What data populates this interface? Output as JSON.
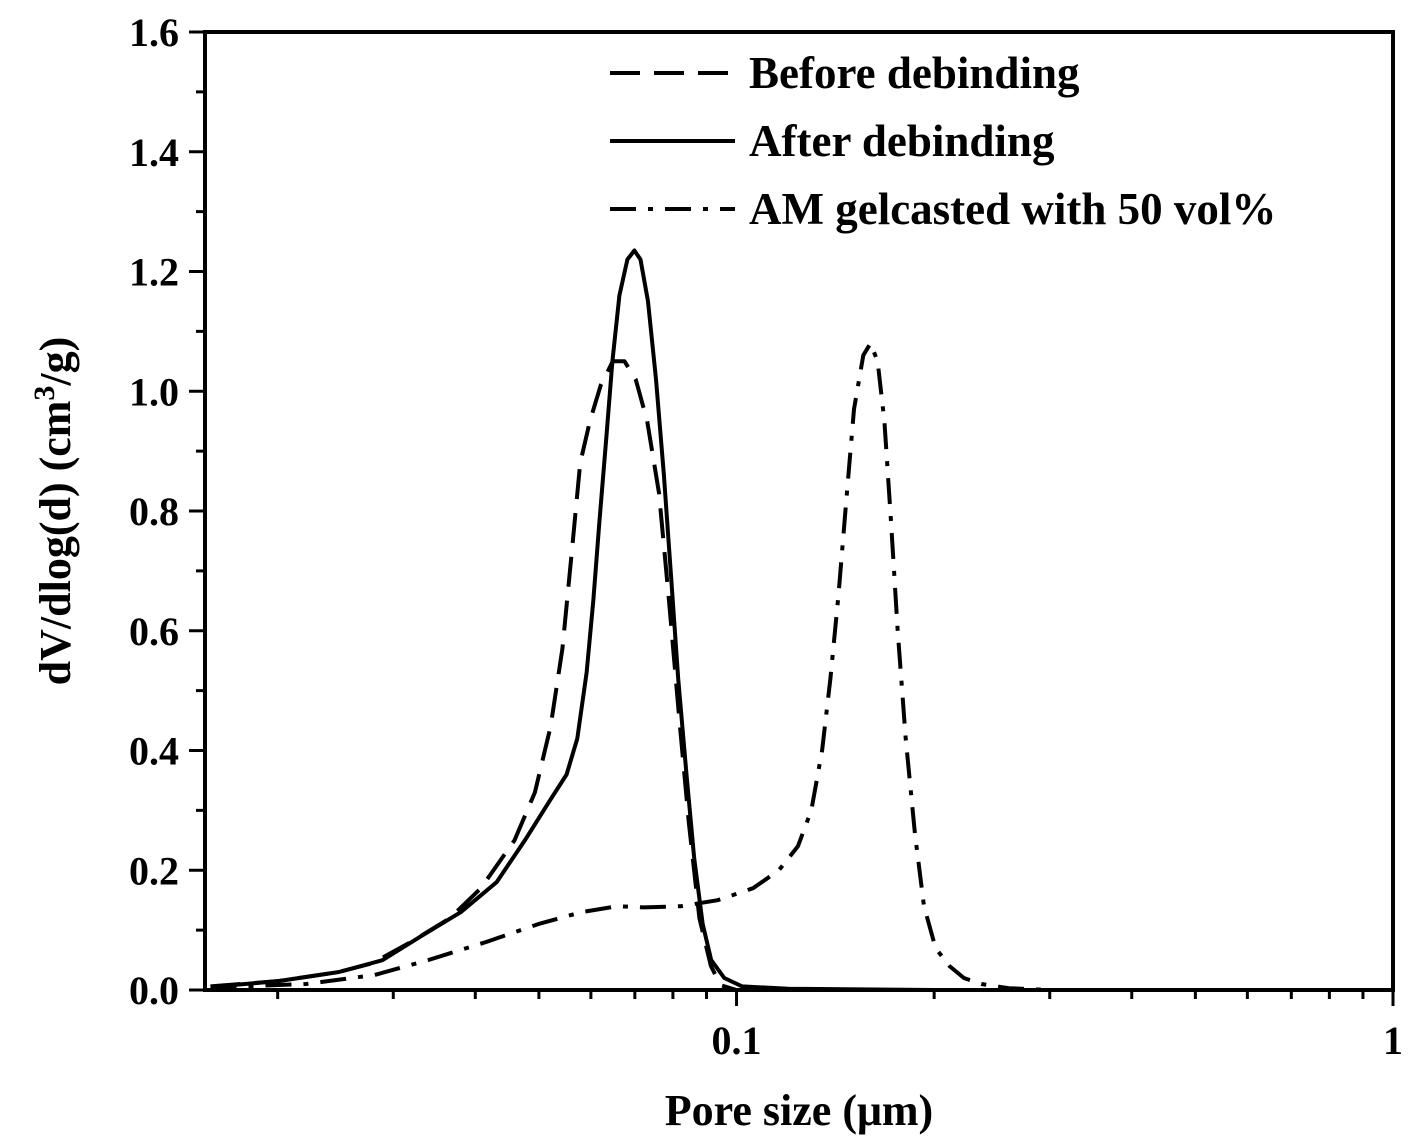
{
  "chart_data": {
    "type": "line",
    "xlabel": "Pore size (μm)",
    "ylabel_main": "dV/dlog(d) (cm",
    "ylabel_sup": "3",
    "ylabel_end": "/g)",
    "x_scale": "log",
    "xlim": [
      0.0155,
      1.0
    ],
    "ylim": [
      0,
      1.6
    ],
    "x_ticks": [
      {
        "value": 0.1,
        "label": "0.1"
      },
      {
        "value": 1,
        "label": "1"
      }
    ],
    "y_ticks": [
      {
        "value": 0,
        "label": "0.0"
      },
      {
        "value": 0.2,
        "label": "0.2"
      },
      {
        "value": 0.4,
        "label": "0.4"
      },
      {
        "value": 0.6,
        "label": "0.6"
      },
      {
        "value": 0.8,
        "label": "0.8"
      },
      {
        "value": 1.0,
        "label": "1.0"
      },
      {
        "value": 1.2,
        "label": "1.2"
      },
      {
        "value": 1.4,
        "label": "1.4"
      },
      {
        "value": 1.6,
        "label": "1.6"
      }
    ],
    "legend_position": "top-right",
    "grid": false,
    "series": [
      {
        "name": "Before debinding",
        "style": "dashed",
        "points": [
          [
            0.0158,
            0.006
          ],
          [
            0.0201,
            0.015
          ],
          [
            0.0248,
            0.03
          ],
          [
            0.0279,
            0.045
          ],
          [
            0.0319,
            0.08
          ],
          [
            0.0366,
            0.12
          ],
          [
            0.0408,
            0.17
          ],
          [
            0.0459,
            0.25
          ],
          [
            0.0493,
            0.33
          ],
          [
            0.0521,
            0.44
          ],
          [
            0.0543,
            0.57
          ],
          [
            0.0561,
            0.73
          ],
          [
            0.0578,
            0.88
          ],
          [
            0.0598,
            0.95
          ],
          [
            0.0621,
            1.01
          ],
          [
            0.0648,
            1.05
          ],
          [
            0.0675,
            1.05
          ],
          [
            0.0702,
            1.02
          ],
          [
            0.0731,
            0.95
          ],
          [
            0.0762,
            0.83
          ],
          [
            0.0789,
            0.65
          ],
          [
            0.0817,
            0.46
          ],
          [
            0.0846,
            0.28
          ],
          [
            0.0878,
            0.12
          ],
          [
            0.0914,
            0.04
          ],
          [
            0.0946,
            0.008
          ],
          [
            0.1,
            0.0
          ]
        ]
      },
      {
        "name": "After debinding",
        "style": "solid",
        "points": [
          [
            0.0158,
            0.005
          ],
          [
            0.0201,
            0.015
          ],
          [
            0.0248,
            0.03
          ],
          [
            0.0289,
            0.05
          ],
          [
            0.0331,
            0.09
          ],
          [
            0.038,
            0.13
          ],
          [
            0.0431,
            0.18
          ],
          [
            0.0476,
            0.25
          ],
          [
            0.0522,
            0.32
          ],
          [
            0.0551,
            0.36
          ],
          [
            0.0572,
            0.42
          ],
          [
            0.0591,
            0.53
          ],
          [
            0.0605,
            0.65
          ],
          [
            0.0618,
            0.78
          ],
          [
            0.0633,
            0.92
          ],
          [
            0.0647,
            1.05
          ],
          [
            0.0663,
            1.16
          ],
          [
            0.0682,
            1.22
          ],
          [
            0.0699,
            1.235
          ],
          [
            0.0714,
            1.22
          ],
          [
            0.0733,
            1.15
          ],
          [
            0.0754,
            1.02
          ],
          [
            0.0775,
            0.86
          ],
          [
            0.0795,
            0.69
          ],
          [
            0.0815,
            0.52
          ],
          [
            0.0839,
            0.36
          ],
          [
            0.0862,
            0.22
          ],
          [
            0.0888,
            0.11
          ],
          [
            0.0915,
            0.05
          ],
          [
            0.0958,
            0.02
          ],
          [
            0.102,
            0.006
          ],
          [
            0.12,
            0.002
          ],
          [
            0.2,
            0.0
          ],
          [
            0.5,
            0.0
          ],
          [
            1.0,
            0.0
          ]
        ]
      },
      {
        "name": "AM gelcasted with 50 vol%",
        "style": "dashdot",
        "points": [
          [
            0.0158,
            0.004
          ],
          [
            0.0221,
            0.01
          ],
          [
            0.0281,
            0.025
          ],
          [
            0.0339,
            0.05
          ],
          [
            0.0415,
            0.08
          ],
          [
            0.0499,
            0.11
          ],
          [
            0.058,
            0.13
          ],
          [
            0.0659,
            0.14
          ],
          [
            0.0723,
            0.138
          ],
          [
            0.0823,
            0.14
          ],
          [
            0.0936,
            0.15
          ],
          [
            0.106,
            0.17
          ],
          [
            0.116,
            0.2
          ],
          [
            0.124,
            0.24
          ],
          [
            0.13,
            0.3
          ],
          [
            0.135,
            0.4
          ],
          [
            0.139,
            0.52
          ],
          [
            0.143,
            0.66
          ],
          [
            0.147,
            0.82
          ],
          [
            0.151,
            0.97
          ],
          [
            0.156,
            1.06
          ],
          [
            0.16,
            1.08
          ],
          [
            0.164,
            1.05
          ],
          [
            0.168,
            0.95
          ],
          [
            0.172,
            0.78
          ],
          [
            0.176,
            0.6
          ],
          [
            0.181,
            0.42
          ],
          [
            0.187,
            0.26
          ],
          [
            0.193,
            0.14
          ],
          [
            0.201,
            0.07
          ],
          [
            0.211,
            0.04
          ],
          [
            0.222,
            0.02
          ],
          [
            0.236,
            0.01
          ],
          [
            0.26,
            0.003
          ],
          [
            0.3,
            0.0
          ]
        ]
      }
    ]
  }
}
